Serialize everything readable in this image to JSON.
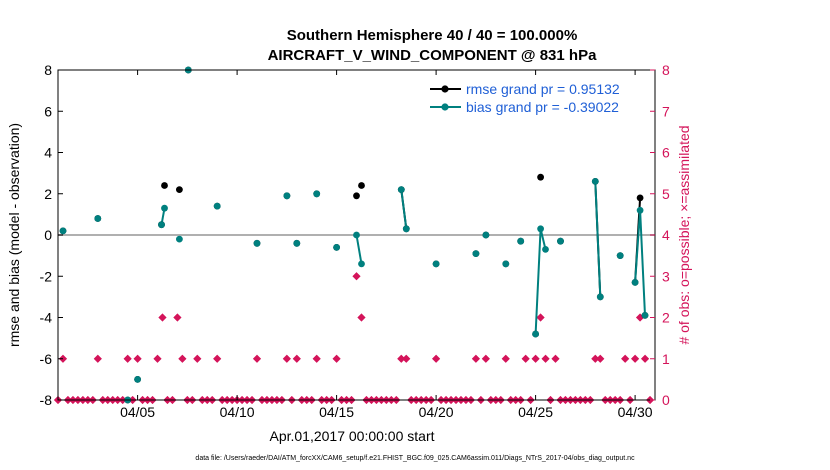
{
  "colors": {
    "rmse": "#000000",
    "bias": "#00807f",
    "obs": "#d4145a",
    "legend_text": "#1f5fd6",
    "zero_line": "#b0b0b0",
    "frame": "#000000"
  },
  "chart_data": {
    "type": "line",
    "title_line1": "Southern Hemisphere 40 / 40 = 100.000%",
    "title_line2": "AIRCRAFT_V_WIND_COMPONENT @ 831 hPa",
    "xlabel": "Apr.01,2017 00:00:00 start",
    "ylabel_left": "rmse and bias (model - observation)",
    "ylabel_right": "# of obs: o=possible; ×=assimilated",
    "xlim": [
      1.0,
      31.0
    ],
    "ylim_left": [
      -8,
      8
    ],
    "ylim_right": [
      0,
      8
    ],
    "x_ticks": [
      5,
      10,
      15,
      20,
      25,
      30
    ],
    "x_tick_labels": [
      "04/05",
      "04/10",
      "04/15",
      "04/20",
      "04/25",
      "04/30"
    ],
    "y_left_ticks": [
      -8,
      -6,
      -4,
      -2,
      0,
      2,
      4,
      6,
      8
    ],
    "y_left_tick_labels": [
      "-8",
      "-6",
      "-4",
      "-2",
      "0",
      "2",
      "4",
      "6",
      "8"
    ],
    "y_right_ticks": [
      0,
      1,
      2,
      3,
      4,
      5,
      6,
      7,
      8
    ],
    "y_right_tick_labels": [
      "0",
      "1",
      "2",
      "3",
      "4",
      "5",
      "6",
      "7",
      "8"
    ],
    "legend": [
      {
        "name": "rmse",
        "label": "rmse grand pr = 0.95132"
      },
      {
        "name": "bias",
        "label": "bias grand pr = -0.39022"
      }
    ],
    "series": [
      {
        "name": "rmse",
        "points": [
          [
            1.25,
            0.2
          ],
          [
            3.0,
            0.8
          ],
          [
            4.5,
            -8.0
          ],
          [
            5.0,
            -7.0
          ],
          [
            6.2,
            0.5
          ],
          [
            6.35,
            2.4
          ],
          [
            7.1,
            2.2
          ],
          [
            7.55,
            8.0
          ],
          [
            9.0,
            1.4
          ],
          [
            11.0,
            -0.4
          ],
          [
            12.5,
            1.9
          ],
          [
            13.0,
            -0.4
          ],
          [
            14.0,
            2.0
          ],
          [
            15.0,
            -0.6
          ],
          [
            16.0,
            1.9
          ],
          [
            16.25,
            2.4
          ],
          [
            18.25,
            2.2
          ],
          [
            18.5,
            0.3
          ],
          [
            20.0,
            -1.4
          ],
          [
            22.0,
            -0.9
          ],
          [
            22.5,
            0.0
          ],
          [
            23.5,
            -1.4
          ],
          [
            24.25,
            -0.3
          ],
          [
            25.0,
            -4.8
          ],
          [
            25.25,
            2.8
          ],
          [
            26.25,
            -0.3
          ],
          [
            28.0,
            2.6
          ],
          [
            28.25,
            -3.0
          ],
          [
            29.25,
            -1.0
          ],
          [
            30.0,
            -2.3
          ],
          [
            30.25,
            1.8
          ],
          [
            30.5,
            -3.9
          ]
        ],
        "segments": [
          [
            [
              18.25,
              2.2
            ],
            [
              18.5,
              0.3
            ]
          ],
          [
            [
              28.0,
              2.6
            ],
            [
              28.25,
              -3.0
            ]
          ],
          [
            [
              30.0,
              -2.3
            ],
            [
              30.25,
              1.8
            ]
          ]
        ]
      },
      {
        "name": "bias",
        "points": [
          [
            1.25,
            0.2
          ],
          [
            3.0,
            0.8
          ],
          [
            4.5,
            -8.0
          ],
          [
            5.0,
            -7.0
          ],
          [
            6.2,
            0.5
          ],
          [
            6.35,
            1.3
          ],
          [
            7.1,
            -0.2
          ],
          [
            7.55,
            8.0
          ],
          [
            9.0,
            1.4
          ],
          [
            11.0,
            -0.4
          ],
          [
            12.5,
            1.9
          ],
          [
            13.0,
            -0.4
          ],
          [
            14.0,
            2.0
          ],
          [
            15.0,
            -0.6
          ],
          [
            16.0,
            0.0
          ],
          [
            16.25,
            -1.4
          ],
          [
            18.25,
            2.2
          ],
          [
            18.5,
            0.3
          ],
          [
            20.0,
            -1.4
          ],
          [
            22.0,
            -0.9
          ],
          [
            22.5,
            0.0
          ],
          [
            23.5,
            -1.4
          ],
          [
            24.25,
            -0.3
          ],
          [
            25.0,
            -4.8
          ],
          [
            25.25,
            0.3
          ],
          [
            25.5,
            -0.7
          ],
          [
            26.25,
            -0.3
          ],
          [
            28.0,
            2.6
          ],
          [
            28.25,
            -3.0
          ],
          [
            29.25,
            -1.0
          ],
          [
            30.0,
            -2.3
          ],
          [
            30.25,
            1.2
          ],
          [
            30.5,
            -3.9
          ]
        ],
        "segments": [
          [
            [
              6.2,
              0.5
            ],
            [
              6.35,
              1.3
            ]
          ],
          [
            [
              16.0,
              0.0
            ],
            [
              16.25,
              -1.4
            ]
          ],
          [
            [
              18.25,
              2.2
            ],
            [
              18.5,
              0.3
            ]
          ],
          [
            [
              25.0,
              -4.8
            ],
            [
              25.25,
              0.3
            ],
            [
              25.5,
              -0.7
            ]
          ],
          [
            [
              28.0,
              2.6
            ],
            [
              28.25,
              -3.0
            ]
          ],
          [
            [
              30.0,
              -2.3
            ],
            [
              30.25,
              1.2
            ],
            [
              30.5,
              -3.9
            ]
          ]
        ]
      },
      {
        "name": "obs_possible",
        "axis": "right",
        "x": [
          1.0,
          1.25,
          1.5,
          1.75,
          2.0,
          2.25,
          2.5,
          2.75,
          3.0,
          3.25,
          3.5,
          3.75,
          4.0,
          4.25,
          4.5,
          4.75,
          5.0,
          5.25,
          5.5,
          5.75,
          6.0,
          6.25,
          6.5,
          6.75,
          7.0,
          7.25,
          7.5,
          7.75,
          8.0,
          8.25,
          8.5,
          8.75,
          9.0,
          9.25,
          9.5,
          9.75,
          10.0,
          10.25,
          10.5,
          10.75,
          11.0,
          11.25,
          11.5,
          11.75,
          12.0,
          12.25,
          12.5,
          12.75,
          13.0,
          13.25,
          13.5,
          13.75,
          14.0,
          14.25,
          14.5,
          14.75,
          15.0,
          15.25,
          15.5,
          15.75,
          16.0,
          16.25,
          16.5,
          16.75,
          17.0,
          17.25,
          17.5,
          17.75,
          18.0,
          18.25,
          18.5,
          18.75,
          19.0,
          19.25,
          19.5,
          19.75,
          20.0,
          20.25,
          20.5,
          20.75,
          21.0,
          21.25,
          21.5,
          21.75,
          22.0,
          22.25,
          22.5,
          22.75,
          23.0,
          23.25,
          23.5,
          23.75,
          24.0,
          24.25,
          24.5,
          24.75,
          25.0,
          25.25,
          25.5,
          25.75,
          26.0,
          26.25,
          26.5,
          26.75,
          27.0,
          27.25,
          27.5,
          27.75,
          28.0,
          28.25,
          28.5,
          28.75,
          29.0,
          29.25,
          29.5,
          29.75,
          30.0,
          30.25,
          30.5,
          30.75
        ],
        "values": [
          0,
          1,
          0,
          0,
          0,
          0,
          0,
          0,
          1,
          0,
          0,
          0,
          0,
          0,
          1,
          0,
          1,
          0,
          0,
          0,
          1,
          2,
          0,
          0,
          2,
          1,
          0,
          0,
          1,
          0,
          0,
          0,
          1,
          0,
          0,
          0,
          0,
          0,
          0,
          0,
          1,
          0,
          0,
          0,
          0,
          0,
          1,
          0,
          1,
          0,
          0,
          0,
          1,
          0,
          0,
          0,
          1,
          0,
          0,
          0,
          3,
          2,
          0,
          0,
          0,
          0,
          0,
          0,
          0,
          1,
          1,
          0,
          0,
          0,
          0,
          0,
          1,
          0,
          0,
          0,
          0,
          0,
          0,
          0,
          1,
          0,
          1,
          0,
          0,
          0,
          1,
          0,
          0,
          0,
          1,
          0,
          1,
          2,
          1,
          0,
          1,
          0,
          0,
          0,
          0,
          0,
          0,
          0,
          1,
          1,
          0,
          0,
          0,
          0,
          1,
          0,
          1,
          2,
          1,
          0
        ]
      },
      {
        "name": "obs_assimilated",
        "axis": "right",
        "x": [
          1.0,
          1.25,
          1.5,
          1.75,
          2.0,
          2.25,
          2.5,
          2.75,
          3.0,
          3.25,
          3.5,
          3.75,
          4.0,
          4.25,
          4.5,
          4.75,
          5.0,
          5.25,
          5.5,
          5.75,
          6.0,
          6.25,
          6.5,
          6.75,
          7.0,
          7.25,
          7.5,
          7.75,
          8.0,
          8.25,
          8.5,
          8.75,
          9.0,
          9.25,
          9.5,
          9.75,
          10.0,
          10.25,
          10.5,
          10.75,
          11.0,
          11.25,
          11.5,
          11.75,
          12.0,
          12.25,
          12.5,
          12.75,
          13.0,
          13.25,
          13.5,
          13.75,
          14.0,
          14.25,
          14.5,
          14.75,
          15.0,
          15.25,
          15.5,
          15.75,
          16.0,
          16.25,
          16.5,
          16.75,
          17.0,
          17.25,
          17.5,
          17.75,
          18.0,
          18.25,
          18.5,
          18.75,
          19.0,
          19.25,
          19.5,
          19.75,
          20.0,
          20.25,
          20.5,
          20.75,
          21.0,
          21.25,
          21.5,
          21.75,
          22.0,
          22.25,
          22.5,
          22.75,
          23.0,
          23.25,
          23.5,
          23.75,
          24.0,
          24.25,
          24.5,
          24.75,
          25.0,
          25.25,
          25.5,
          25.75,
          26.0,
          26.25,
          26.5,
          26.75,
          27.0,
          27.25,
          27.5,
          27.75,
          28.0,
          28.25,
          28.5,
          28.75,
          29.0,
          29.25,
          29.5,
          29.75,
          30.0,
          30.25,
          30.5,
          30.75
        ],
        "values": [
          0,
          1,
          0,
          0,
          0,
          0,
          0,
          0,
          1,
          0,
          0,
          0,
          0,
          0,
          1,
          0,
          1,
          0,
          0,
          0,
          1,
          2,
          0,
          0,
          2,
          1,
          0,
          0,
          1,
          0,
          0,
          0,
          1,
          0,
          0,
          0,
          0,
          0,
          0,
          0,
          1,
          0,
          0,
          0,
          0,
          0,
          1,
          0,
          1,
          0,
          0,
          0,
          1,
          0,
          0,
          0,
          1,
          0,
          0,
          0,
          3,
          2,
          0,
          0,
          0,
          0,
          0,
          0,
          0,
          1,
          1,
          0,
          0,
          0,
          0,
          0,
          1,
          0,
          0,
          0,
          0,
          0,
          0,
          0,
          1,
          0,
          1,
          0,
          0,
          0,
          1,
          0,
          0,
          0,
          1,
          0,
          1,
          2,
          1,
          0,
          1,
          0,
          0,
          0,
          0,
          0,
          0,
          0,
          1,
          1,
          0,
          0,
          0,
          0,
          1,
          0,
          1,
          2,
          1,
          0
        ]
      }
    ]
  },
  "footnote": "data file: /Users/raeder/DAI/ATM_forcXX/CAM6_setup/f.e21.FHIST_BGC.f09_025.CAM6assim.011/Diags_NTrS_2017-04/obs_diag_output.nc"
}
